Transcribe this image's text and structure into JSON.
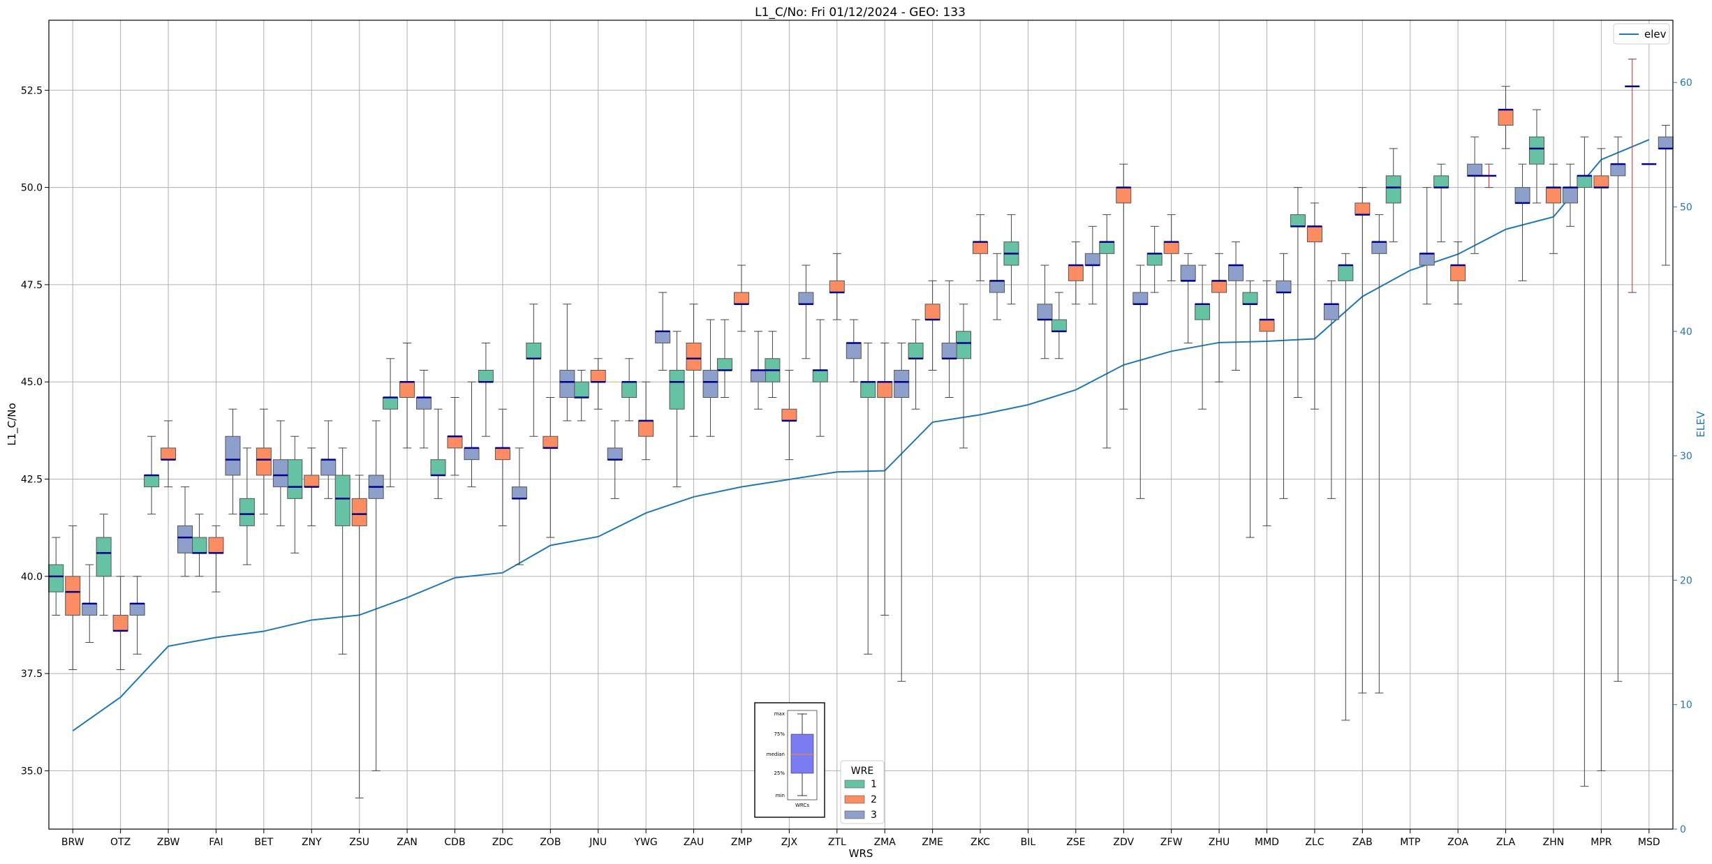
{
  "chart_data": {
    "type": "boxplot",
    "title": "L1_C/No: Fri 01/12/2024 - GEO: 133",
    "xlabel": "WRS",
    "ylabel": "L1_C/No",
    "y2label": "ELEV",
    "ylim": [
      33.5,
      54.3
    ],
    "y2lim": [
      0,
      65
    ],
    "yticks": [
      "35.0",
      "37.5",
      "40.0",
      "42.5",
      "45.0",
      "47.5",
      "50.0",
      "52.5"
    ],
    "y2ticks": [
      "0",
      "10",
      "20",
      "30",
      "40",
      "50",
      "60"
    ],
    "grid": true,
    "categories": [
      "BRW",
      "OTZ",
      "ZBW",
      "FAI",
      "BET",
      "ZNY",
      "ZSU",
      "ZAN",
      "CDB",
      "ZDC",
      "ZOB",
      "JNU",
      "YWG",
      "ZAU",
      "ZMP",
      "ZJX",
      "ZTL",
      "ZMA",
      "ZME",
      "ZKC",
      "BIL",
      "ZSE",
      "ZDV",
      "ZFW",
      "ZHU",
      "MMD",
      "ZLC",
      "ZAB",
      "MTP",
      "ZOA",
      "ZLA",
      "ZHN",
      "MPR",
      "MSD"
    ],
    "wre_colors": {
      "1": "#66c2a5",
      "2": "#fc8d62",
      "3": "#8da0cb"
    },
    "series": [
      {
        "name": "1",
        "boxes": [
          {
            "cat": 0,
            "min": 39.0,
            "q1": 39.6,
            "med": 40.0,
            "q3": 40.3,
            "max": 41.0
          },
          {
            "cat": 1,
            "min": 39.0,
            "q1": 40.0,
            "med": 40.6,
            "q3": 41.0,
            "max": 41.6
          },
          {
            "cat": 2,
            "min": 41.6,
            "q1": 42.3,
            "med": 42.6,
            "q3": 42.6,
            "max": 43.6
          },
          {
            "cat": 3,
            "min": 40.0,
            "q1": 40.6,
            "med": 40.6,
            "q3": 41.0,
            "max": 41.6
          },
          {
            "cat": 4,
            "min": 40.3,
            "q1": 41.3,
            "med": 41.6,
            "q3": 42.0,
            "max": 43.3
          },
          {
            "cat": 5,
            "min": 40.6,
            "q1": 42.0,
            "med": 42.3,
            "q3": 43.0,
            "max": 43.6
          },
          {
            "cat": 6,
            "min": 38.0,
            "q1": 41.3,
            "med": 42.0,
            "q3": 42.6,
            "max": 43.3
          },
          {
            "cat": 7,
            "min": 42.3,
            "q1": 44.3,
            "med": 44.6,
            "q3": 44.6,
            "max": 45.6
          },
          {
            "cat": 8,
            "min": 42.0,
            "q1": 42.6,
            "med": 42.6,
            "q3": 43.0,
            "max": 44.3
          },
          {
            "cat": 9,
            "min": 43.6,
            "q1": 45.0,
            "med": 45.0,
            "q3": 45.3,
            "max": 46.0
          },
          {
            "cat": 10,
            "min": 43.6,
            "q1": 45.6,
            "med": 45.6,
            "q3": 46.0,
            "max": 47.0
          },
          {
            "cat": 11,
            "min": 44.0,
            "q1": 44.6,
            "med": 44.6,
            "q3": 45.0,
            "max": 45.3
          },
          {
            "cat": 12,
            "min": 44.0,
            "q1": 44.6,
            "med": 45.0,
            "q3": 45.0,
            "max": 45.6
          },
          {
            "cat": 13,
            "min": 42.3,
            "q1": 44.3,
            "med": 45.0,
            "q3": 45.3,
            "max": 46.3
          },
          {
            "cat": 14,
            "min": 44.6,
            "q1": 45.3,
            "med": 45.3,
            "q3": 45.6,
            "max": 46.6
          },
          {
            "cat": 15,
            "min": 44.6,
            "q1": 45.0,
            "med": 45.3,
            "q3": 45.6,
            "max": 46.3
          },
          {
            "cat": 16,
            "min": 43.6,
            "q1": 45.0,
            "med": 45.3,
            "q3": 45.3,
            "max": 46.6
          },
          {
            "cat": 17,
            "min": 38.0,
            "q1": 44.6,
            "med": 45.0,
            "q3": 45.0,
            "max": 46.0
          },
          {
            "cat": 18,
            "min": 44.3,
            "q1": 45.6,
            "med": 45.6,
            "q3": 46.0,
            "max": 46.6
          },
          {
            "cat": 19,
            "min": 43.3,
            "q1": 45.6,
            "med": 46.0,
            "q3": 46.3,
            "max": 47.0
          },
          {
            "cat": 20,
            "min": 47.0,
            "q1": 48.0,
            "med": 48.3,
            "q3": 48.6,
            "max": 49.3
          },
          {
            "cat": 21,
            "min": 45.6,
            "q1": 46.3,
            "med": 46.3,
            "q3": 46.6,
            "max": 47.3
          },
          {
            "cat": 22,
            "min": 43.3,
            "q1": 48.3,
            "med": 48.6,
            "q3": 48.6,
            "max": 49.3
          },
          {
            "cat": 23,
            "min": 47.3,
            "q1": 48.0,
            "med": 48.3,
            "q3": 48.3,
            "max": 49.0
          },
          {
            "cat": 24,
            "min": 44.3,
            "q1": 46.6,
            "med": 47.0,
            "q3": 47.0,
            "max": 48.0
          },
          {
            "cat": 25,
            "min": 41.0,
            "q1": 47.0,
            "med": 47.0,
            "q3": 47.3,
            "max": 47.6
          },
          {
            "cat": 26,
            "min": 44.6,
            "q1": 49.0,
            "med": 49.0,
            "q3": 49.3,
            "max": 50.0
          },
          {
            "cat": 27,
            "min": 36.3,
            "q1": 47.6,
            "med": 48.0,
            "q3": 48.0,
            "max": 48.3
          },
          {
            "cat": 28,
            "min": 48.6,
            "q1": 49.6,
            "med": 50.0,
            "q3": 50.3,
            "max": 51.0
          },
          {
            "cat": 29,
            "min": 48.6,
            "q1": 50.0,
            "med": 50.0,
            "q3": 50.3,
            "max": 50.6
          },
          {
            "cat": 31,
            "min": 49.6,
            "q1": 50.6,
            "med": 51.0,
            "q3": 51.3,
            "max": 52.0
          },
          {
            "cat": 32,
            "min": 34.6,
            "q1": 50.0,
            "med": 50.3,
            "q3": 50.3,
            "max": 51.3
          }
        ]
      },
      {
        "name": "2",
        "boxes": [
          {
            "cat": 0,
            "min": 37.6,
            "q1": 39.0,
            "med": 39.6,
            "q3": 40.0,
            "max": 41.3
          },
          {
            "cat": 1,
            "min": 37.6,
            "q1": 38.6,
            "med": 38.6,
            "q3": 39.0,
            "max": 40.0
          },
          {
            "cat": 2,
            "min": 42.3,
            "q1": 43.0,
            "med": 43.0,
            "q3": 43.3,
            "max": 44.0
          },
          {
            "cat": 3,
            "min": 39.6,
            "q1": 40.6,
            "med": 40.6,
            "q3": 41.0,
            "max": 41.3
          },
          {
            "cat": 4,
            "min": 41.6,
            "q1": 42.6,
            "med": 43.0,
            "q3": 43.3,
            "max": 44.3
          },
          {
            "cat": 5,
            "min": 41.3,
            "q1": 42.3,
            "med": 42.3,
            "q3": 42.6,
            "max": 43.3
          },
          {
            "cat": 6,
            "min": 34.3,
            "q1": 41.3,
            "med": 41.6,
            "q3": 42.0,
            "max": 42.6
          },
          {
            "cat": 7,
            "min": 43.3,
            "q1": 44.6,
            "med": 45.0,
            "q3": 45.0,
            "max": 46.0
          },
          {
            "cat": 8,
            "min": 42.6,
            "q1": 43.3,
            "med": 43.6,
            "q3": 43.6,
            "max": 44.6
          },
          {
            "cat": 9,
            "min": 41.3,
            "q1": 43.0,
            "med": 43.3,
            "q3": 43.3,
            "max": 44.3
          },
          {
            "cat": 10,
            "min": 41.0,
            "q1": 43.3,
            "med": 43.3,
            "q3": 43.6,
            "max": 44.6
          },
          {
            "cat": 11,
            "min": 44.3,
            "q1": 45.0,
            "med": 45.0,
            "q3": 45.3,
            "max": 45.6
          },
          {
            "cat": 12,
            "min": 43.0,
            "q1": 43.6,
            "med": 44.0,
            "q3": 44.0,
            "max": 45.0
          },
          {
            "cat": 13,
            "min": 43.6,
            "q1": 45.3,
            "med": 45.6,
            "q3": 46.0,
            "max": 47.0
          },
          {
            "cat": 14,
            "min": 46.3,
            "q1": 47.0,
            "med": 47.0,
            "q3": 47.3,
            "max": 48.0
          },
          {
            "cat": 15,
            "min": 43.0,
            "q1": 44.0,
            "med": 44.0,
            "q3": 44.3,
            "max": 45.3
          },
          {
            "cat": 16,
            "min": 46.6,
            "q1": 47.3,
            "med": 47.3,
            "q3": 47.6,
            "max": 48.3
          },
          {
            "cat": 17,
            "min": 39.0,
            "q1": 44.6,
            "med": 45.0,
            "q3": 45.0,
            "max": 46.0
          },
          {
            "cat": 18,
            "min": 45.3,
            "q1": 46.6,
            "med": 46.6,
            "q3": 47.0,
            "max": 47.6
          },
          {
            "cat": 19,
            "min": 47.6,
            "q1": 48.3,
            "med": 48.6,
            "q3": 48.6,
            "max": 49.3
          },
          {
            "cat": 21,
            "min": 47.0,
            "q1": 47.6,
            "med": 48.0,
            "q3": 48.0,
            "max": 48.6
          },
          {
            "cat": 22,
            "min": 44.3,
            "q1": 49.6,
            "med": 50.0,
            "q3": 50.0,
            "max": 50.6
          },
          {
            "cat": 23,
            "min": 47.6,
            "q1": 48.3,
            "med": 48.6,
            "q3": 48.6,
            "max": 49.3
          },
          {
            "cat": 24,
            "min": 45.0,
            "q1": 47.3,
            "med": 47.6,
            "q3": 47.6,
            "max": 48.3
          },
          {
            "cat": 25,
            "min": 41.3,
            "q1": 46.3,
            "med": 46.6,
            "q3": 46.6,
            "max": 47.6
          },
          {
            "cat": 26,
            "min": 44.3,
            "q1": 48.6,
            "med": 49.0,
            "q3": 49.0,
            "max": 49.6
          },
          {
            "cat": 27,
            "min": 37.0,
            "q1": 49.3,
            "med": 49.3,
            "q3": 49.6,
            "max": 50.0
          },
          {
            "cat": 29,
            "min": 47.0,
            "q1": 47.6,
            "med": 48.0,
            "q3": 48.0,
            "max": 48.6
          },
          {
            "cat": 30,
            "min": 51.0,
            "q1": 51.6,
            "med": 52.0,
            "q3": 52.0,
            "max": 52.6
          },
          {
            "cat": 31,
            "min": 48.3,
            "q1": 49.6,
            "med": 50.0,
            "q3": 50.0,
            "max": 50.6
          },
          {
            "cat": 32,
            "min": 35.0,
            "q1": 50.0,
            "med": 50.0,
            "q3": 50.3,
            "max": 51.0
          }
        ]
      },
      {
        "name": "3",
        "boxes": [
          {
            "cat": 0,
            "min": 38.3,
            "q1": 39.0,
            "med": 39.3,
            "q3": 39.3,
            "max": 40.3
          },
          {
            "cat": 1,
            "min": 38.0,
            "q1": 39.0,
            "med": 39.3,
            "q3": 39.3,
            "max": 40.0
          },
          {
            "cat": 2,
            "min": 40.0,
            "q1": 40.6,
            "med": 41.0,
            "q3": 41.3,
            "max": 42.3
          },
          {
            "cat": 3,
            "min": 41.6,
            "q1": 42.6,
            "med": 43.0,
            "q3": 43.6,
            "max": 44.3
          },
          {
            "cat": 4,
            "min": 41.3,
            "q1": 42.3,
            "med": 42.6,
            "q3": 43.0,
            "max": 44.0
          },
          {
            "cat": 5,
            "min": 42.0,
            "q1": 42.6,
            "med": 43.0,
            "q3": 43.0,
            "max": 44.0
          },
          {
            "cat": 6,
            "min": 35.0,
            "q1": 42.0,
            "med": 42.3,
            "q3": 42.6,
            "max": 44.0
          },
          {
            "cat": 7,
            "min": 43.3,
            "q1": 44.3,
            "med": 44.6,
            "q3": 44.6,
            "max": 45.3
          },
          {
            "cat": 8,
            "min": 42.3,
            "q1": 43.0,
            "med": 43.3,
            "q3": 43.3,
            "max": 45.0
          },
          {
            "cat": 9,
            "min": 40.3,
            "q1": 42.0,
            "med": 42.0,
            "q3": 42.3,
            "max": 43.3
          },
          {
            "cat": 10,
            "min": 44.0,
            "q1": 44.6,
            "med": 45.0,
            "q3": 45.3,
            "max": 47.0
          },
          {
            "cat": 11,
            "min": 42.0,
            "q1": 43.0,
            "med": 43.0,
            "q3": 43.3,
            "max": 44.0
          },
          {
            "cat": 12,
            "min": 45.3,
            "q1": 46.0,
            "med": 46.3,
            "q3": 46.3,
            "max": 47.3
          },
          {
            "cat": 13,
            "min": 43.6,
            "q1": 44.6,
            "med": 45.0,
            "q3": 45.3,
            "max": 46.6
          },
          {
            "cat": 14,
            "min": 44.3,
            "q1": 45.0,
            "med": 45.3,
            "q3": 45.3,
            "max": 46.3
          },
          {
            "cat": 15,
            "min": 45.6,
            "q1": 47.0,
            "med": 47.0,
            "q3": 47.3,
            "max": 48.0
          },
          {
            "cat": 16,
            "min": 45.0,
            "q1": 45.6,
            "med": 46.0,
            "q3": 46.0,
            "max": 46.6
          },
          {
            "cat": 17,
            "min": 37.3,
            "q1": 44.6,
            "med": 45.0,
            "q3": 45.3,
            "max": 46.0
          },
          {
            "cat": 18,
            "min": 44.6,
            "q1": 45.6,
            "med": 45.6,
            "q3": 46.0,
            "max": 47.6
          },
          {
            "cat": 19,
            "min": 46.6,
            "q1": 47.3,
            "med": 47.6,
            "q3": 47.6,
            "max": 48.3
          },
          {
            "cat": 20,
            "min": 45.6,
            "q1": 46.6,
            "med": 46.6,
            "q3": 47.0,
            "max": 48.0
          },
          {
            "cat": 21,
            "min": 47.0,
            "q1": 48.0,
            "med": 48.0,
            "q3": 48.3,
            "max": 49.0
          },
          {
            "cat": 22,
            "min": 42.0,
            "q1": 47.0,
            "med": 47.0,
            "q3": 47.3,
            "max": 48.0
          },
          {
            "cat": 23,
            "min": 46.0,
            "q1": 47.6,
            "med": 47.6,
            "q3": 48.0,
            "max": 48.3
          },
          {
            "cat": 24,
            "min": 45.3,
            "q1": 47.6,
            "med": 48.0,
            "q3": 48.0,
            "max": 48.6
          },
          {
            "cat": 25,
            "min": 42.0,
            "q1": 47.3,
            "med": 47.3,
            "q3": 47.6,
            "max": 48.3
          },
          {
            "cat": 26,
            "min": 42.0,
            "q1": 46.6,
            "med": 47.0,
            "q3": 47.0,
            "max": 47.6
          },
          {
            "cat": 27,
            "min": 37.0,
            "q1": 48.3,
            "med": 48.6,
            "q3": 48.6,
            "max": 49.3
          },
          {
            "cat": 28,
            "min": 47.0,
            "q1": 48.0,
            "med": 48.3,
            "q3": 48.3,
            "max": 50.0
          },
          {
            "cat": 29,
            "min": 48.3,
            "q1": 50.3,
            "med": 50.3,
            "q3": 50.6,
            "max": 51.3
          },
          {
            "cat": 30,
            "min": 47.6,
            "q1": 49.6,
            "med": 49.6,
            "q3": 50.0,
            "max": 50.6
          },
          {
            "cat": 31,
            "min": 49.0,
            "q1": 49.6,
            "med": 50.0,
            "q3": 50.0,
            "max": 50.6
          },
          {
            "cat": 32,
            "min": 37.3,
            "q1": 50.3,
            "med": 50.6,
            "q3": 50.6,
            "max": 51.3
          },
          {
            "cat": 33,
            "min": 48.0,
            "q1": 51.0,
            "med": 51.0,
            "q3": 51.3,
            "max": 51.6
          }
        ]
      }
    ],
    "extra_markers": [
      {
        "cat": 30,
        "wre": "1",
        "min": 50.0,
        "med": 50.3,
        "max": 50.6
      },
      {
        "cat": 33,
        "wre": "1",
        "min": 47.3,
        "med": 52.6,
        "max": 53.3
      },
      {
        "cat": 33,
        "wre": "2",
        "min": 50.6,
        "med": 50.6,
        "max": 50.6
      }
    ],
    "elev_series": {
      "name": "elev",
      "color": "#1f77b4",
      "values": [
        7.9,
        10.6,
        14.7,
        15.4,
        15.9,
        16.8,
        17.2,
        18.6,
        20.2,
        20.6,
        22.8,
        23.5,
        25.4,
        26.7,
        27.5,
        28.1,
        28.7,
        28.8,
        32.7,
        33.3,
        34.1,
        35.3,
        37.3,
        38.4,
        39.1,
        39.2,
        39.4,
        42.8,
        44.9,
        46.2,
        48.2,
        49.2,
        53.8,
        55.4
      ]
    },
    "legend": {
      "title": "WRE",
      "labels": [
        "1",
        "2",
        "3"
      ],
      "placement": "bottom-center"
    },
    "elev_legend": {
      "label": "elev",
      "placement": "top-right"
    },
    "inset_labels": [
      "max",
      "75%",
      "median",
      "25%",
      "min",
      "WRCs"
    ]
  }
}
